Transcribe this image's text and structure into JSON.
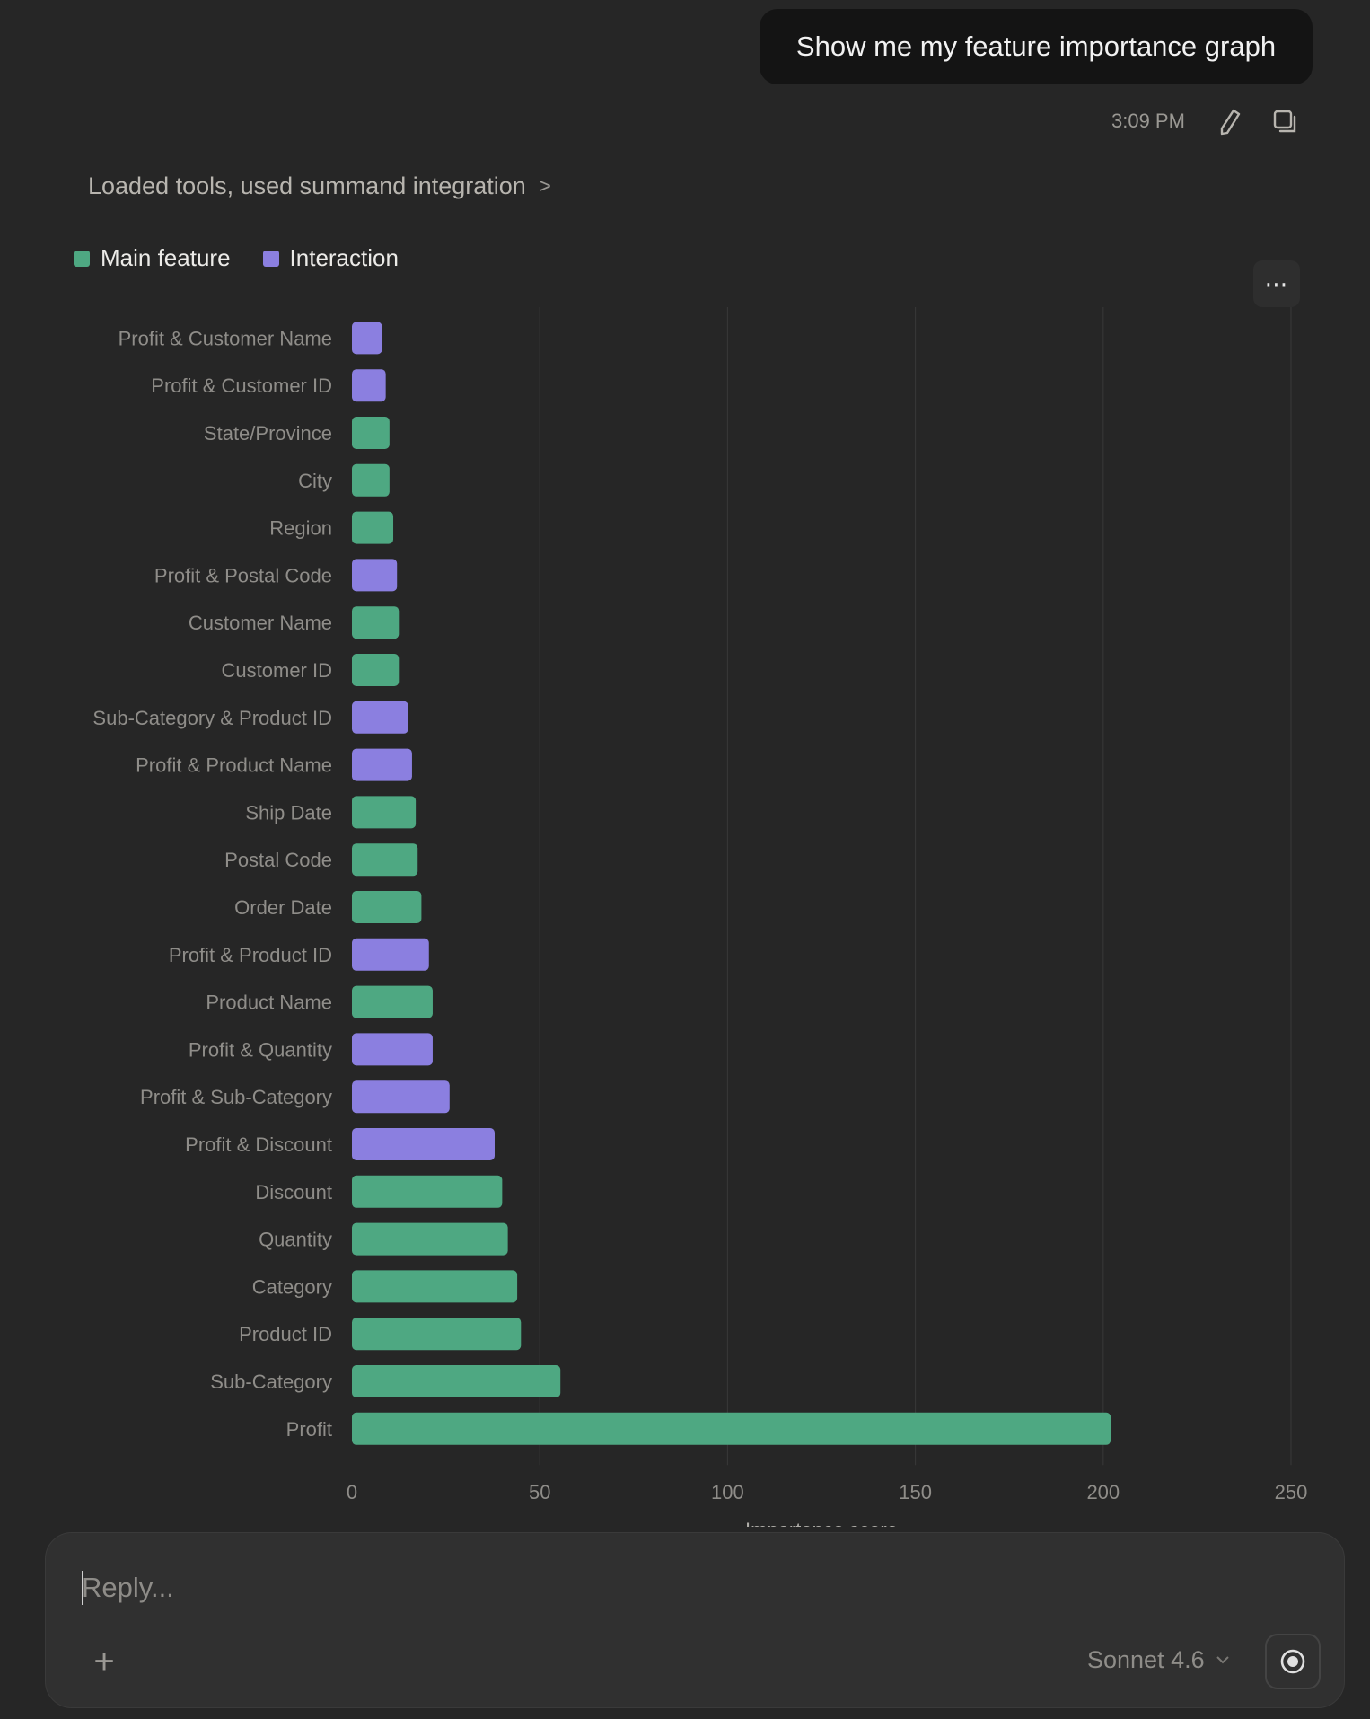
{
  "message": {
    "user_text": "Show me my feature importance graph",
    "time": "3:09 PM",
    "tools_line": "Loaded tools, used summand integration",
    "tools_chevron": ">"
  },
  "icons": {
    "edit": "pencil-icon",
    "copy": "copy-icon",
    "more": "more-horizontal-icon",
    "plus": "plus-icon",
    "model_chevron": "chevron-down-icon",
    "voice": "voice-mode-icon"
  },
  "legend": [
    {
      "label": "Main feature",
      "color": "#4ea882"
    },
    {
      "label": "Interaction",
      "color": "#8b7fe0"
    }
  ],
  "more_label": "⋯",
  "chart_data": {
    "type": "bar",
    "orientation": "horizontal",
    "xlabel": "Importance score",
    "xlim": [
      0,
      250
    ],
    "xticks": [
      0,
      50,
      100,
      150,
      200,
      250
    ],
    "grid": "vertical",
    "legend_position": "top-left",
    "categories": [
      "Profit & Customer Name",
      "Profit & Customer ID",
      "State/Province",
      "City",
      "Region",
      "Profit & Postal Code",
      "Customer Name",
      "Customer ID",
      "Sub-Category & Product ID",
      "Profit & Product Name",
      "Ship Date",
      "Postal Code",
      "Order Date",
      "Profit & Product ID",
      "Product Name",
      "Profit & Quantity",
      "Profit & Sub-Category",
      "Profit & Discount",
      "Discount",
      "Quantity",
      "Category",
      "Product ID",
      "Sub-Category",
      "Profit"
    ],
    "values": [
      8,
      9,
      10,
      10,
      11,
      12,
      12.5,
      12.5,
      15,
      16,
      17,
      17.5,
      18.5,
      20.5,
      21.5,
      21.5,
      26,
      38,
      40,
      41.5,
      44,
      45,
      55.5,
      202
    ],
    "types": [
      "Interaction",
      "Interaction",
      "Main feature",
      "Main feature",
      "Main feature",
      "Interaction",
      "Main feature",
      "Main feature",
      "Interaction",
      "Interaction",
      "Main feature",
      "Main feature",
      "Main feature",
      "Interaction",
      "Main feature",
      "Interaction",
      "Interaction",
      "Interaction",
      "Main feature",
      "Main feature",
      "Main feature",
      "Main feature",
      "Main feature",
      "Main feature"
    ],
    "colors": {
      "Main feature": "#4ea882",
      "Interaction": "#8b7fe0"
    }
  },
  "composer": {
    "placeholder": "Reply...",
    "plus": "+",
    "model": "Sonnet 4.6"
  }
}
